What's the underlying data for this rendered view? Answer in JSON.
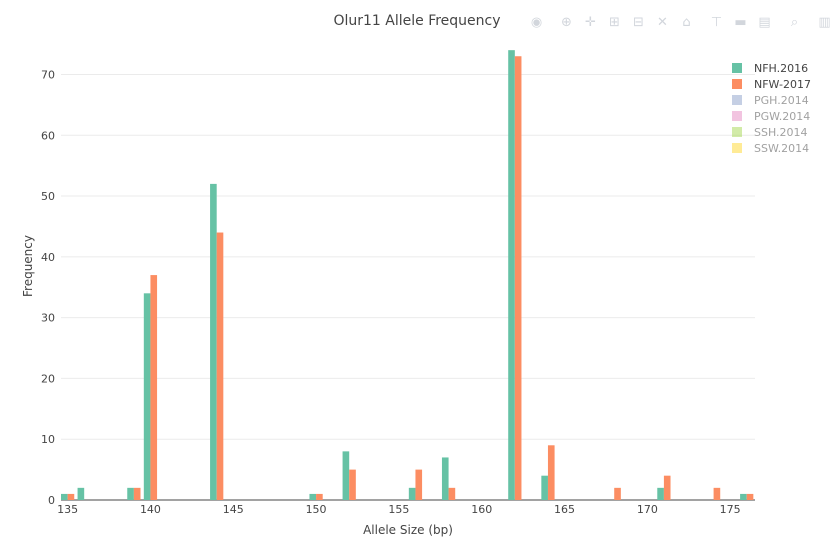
{
  "chart_data": {
    "type": "bar",
    "title": "Olur11 Allele Frequency",
    "xlabel": "Allele Size (bp)",
    "ylabel": "Frequency",
    "xlim": [
      134.6,
      176.5
    ],
    "ylim": [
      0,
      76
    ],
    "xticks": [
      135,
      140,
      145,
      150,
      155,
      160,
      165,
      170,
      175
    ],
    "yticks": [
      0,
      10,
      20,
      30,
      40,
      50,
      60,
      70
    ],
    "grid": true,
    "legend_position": "top-right",
    "series": [
      {
        "name": "NFH.2016",
        "color": "#66c2a5",
        "visible": true,
        "points": [
          [
            135,
            1
          ],
          [
            136,
            2
          ],
          [
            139,
            2
          ],
          [
            140,
            34
          ],
          [
            144,
            52
          ],
          [
            150,
            1
          ],
          [
            152,
            8
          ],
          [
            156,
            2
          ],
          [
            158,
            7
          ],
          [
            162,
            74
          ],
          [
            164,
            4
          ],
          [
            171,
            2
          ],
          [
            176,
            1
          ]
        ]
      },
      {
        "name": "NFW-2017",
        "color": "#fc8d62",
        "visible": true,
        "points": [
          [
            135,
            1
          ],
          [
            139,
            2
          ],
          [
            140,
            37
          ],
          [
            144,
            44
          ],
          [
            150,
            1
          ],
          [
            152,
            5
          ],
          [
            156,
            5
          ],
          [
            158,
            2
          ],
          [
            162,
            73
          ],
          [
            164,
            9
          ],
          [
            168,
            2
          ],
          [
            171,
            4
          ],
          [
            174,
            2
          ],
          [
            176,
            1
          ]
        ]
      },
      {
        "name": "PGH.2014",
        "color": "#8da0cb",
        "visible": false,
        "points": []
      },
      {
        "name": "PGW.2014",
        "color": "#e78ac3",
        "visible": false,
        "points": []
      },
      {
        "name": "SSH.2014",
        "color": "#a6d854",
        "visible": false,
        "points": []
      },
      {
        "name": "SSW.2014",
        "color": "#ffd92f",
        "visible": false,
        "points": []
      }
    ]
  },
  "modebar": [
    {
      "name": "camera-icon",
      "glyph": "◉"
    },
    {
      "name": "zoom-icon",
      "glyph": "⊕"
    },
    {
      "name": "pan-icon",
      "glyph": "✛"
    },
    {
      "name": "zoom-in-icon",
      "glyph": "⊞"
    },
    {
      "name": "zoom-out-icon",
      "glyph": "⊟"
    },
    {
      "name": "autoscale-icon",
      "glyph": "✕"
    },
    {
      "name": "reset-axes-icon",
      "glyph": "⌂"
    },
    {
      "name": "spike-lines-icon",
      "glyph": "⊤"
    },
    {
      "name": "hover-closest-icon",
      "glyph": "▬"
    },
    {
      "name": "hover-compare-icon",
      "glyph": "▤"
    },
    {
      "name": "lasso-icon",
      "glyph": "⌕"
    },
    {
      "name": "plotly-logo-icon",
      "glyph": "▥"
    }
  ]
}
